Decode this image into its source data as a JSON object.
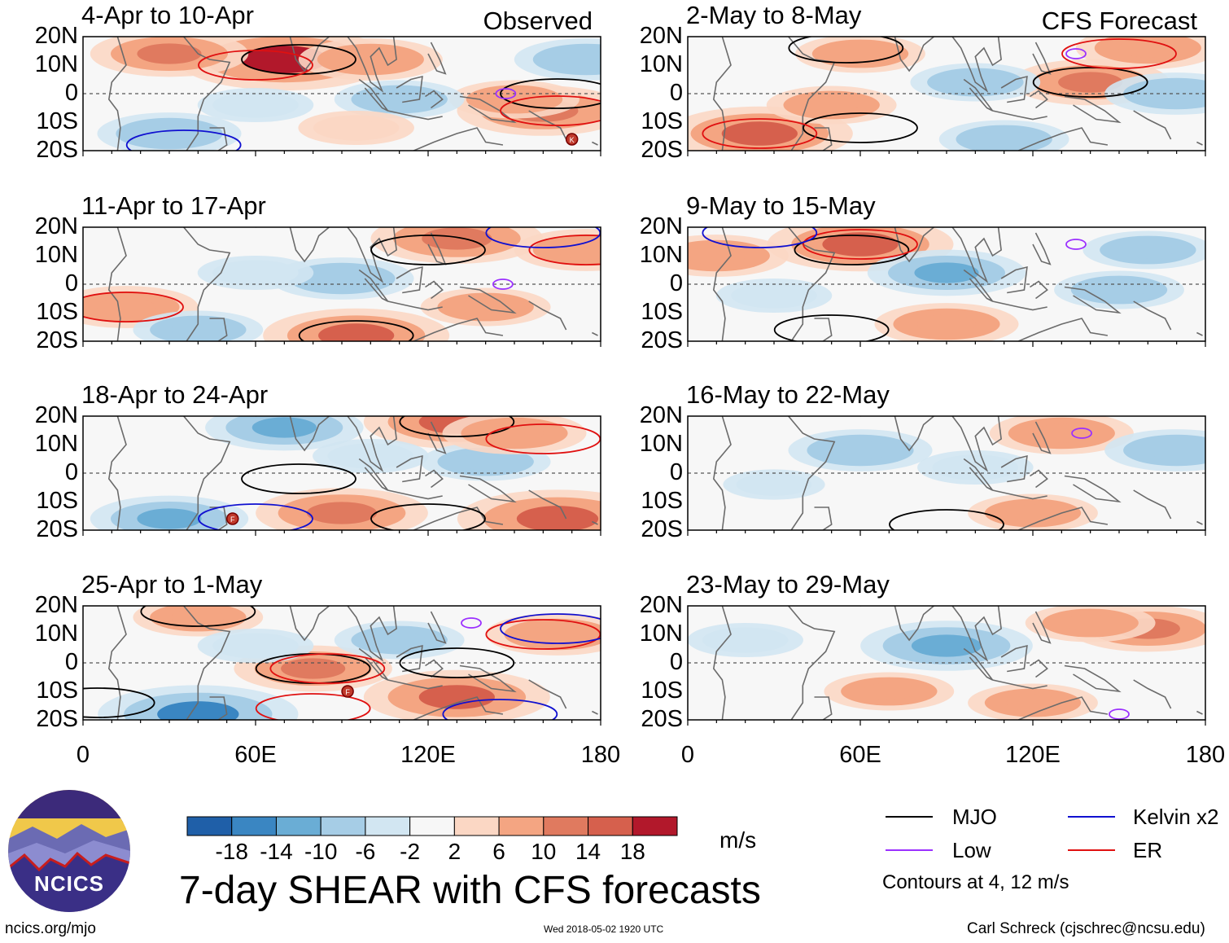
{
  "chart_data": {
    "type": "heatmap",
    "variable": "7-day SHEAR with CFS forecasts",
    "units": "m/s",
    "x_ticks": [
      "0",
      "60E",
      "120E",
      "180"
    ],
    "x_range": [
      0,
      180
    ],
    "y_ticks": [
      "20N",
      "10N",
      "0",
      "10S",
      "20S"
    ],
    "y_range": [
      -20,
      20
    ],
    "color_levels": [
      "-18",
      "-14",
      "-10",
      "-6",
      "-2",
      "2",
      "6",
      "10",
      "14",
      "18"
    ],
    "color_scale": [
      "#08306b",
      "#1f5fa8",
      "#3a86c2",
      "#6aadd5",
      "#a6cde6",
      "#d2e6f2",
      "#f7f7f7",
      "#fbd7c4",
      "#f4a582",
      "#e07a5f",
      "#d6604d",
      "#b2182b",
      "#67001f"
    ],
    "columns": [
      {
        "side_label": "Observed",
        "panels": [
          {
            "title": "4-Apr to 10-Apr",
            "anomalies": [
              {
                "lon": 70,
                "lat": 12,
                "value": 18
              },
              {
                "lon": 30,
                "lat": 14,
                "value": 10
              },
              {
                "lon": 100,
                "lat": 12,
                "value": 8
              },
              {
                "lon": 160,
                "lat": -6,
                "value": 12
              },
              {
                "lon": 150,
                "lat": -2,
                "value": 6
              },
              {
                "lon": 175,
                "lat": 12,
                "value": -8
              },
              {
                "lon": 110,
                "lat": -2,
                "value": -6
              },
              {
                "lon": 30,
                "lat": -14,
                "value": -8
              },
              {
                "lon": 60,
                "lat": -4,
                "value": -4
              },
              {
                "lon": 95,
                "lat": -12,
                "value": 4
              }
            ],
            "contours": [
              {
                "type": "MJO",
                "lon": 75,
                "lat": 12
              },
              {
                "type": "MJO",
                "lon": 165,
                "lat": 0
              },
              {
                "type": "ER",
                "lon": 60,
                "lat": 10
              },
              {
                "type": "ER",
                "lon": 165,
                "lat": -6
              },
              {
                "type": "Low",
                "lon": 147,
                "lat": 0
              },
              {
                "type": "Kelvin x2",
                "lon": 35,
                "lat": -18
              }
            ],
            "storms": [
              {
                "label": "K",
                "lon": 170,
                "lat": -16
              }
            ]
          },
          {
            "title": "11-Apr to 17-Apr",
            "anomalies": [
              {
                "lon": 130,
                "lat": 16,
                "value": 12
              },
              {
                "lon": 95,
                "lat": -18,
                "value": 14
              },
              {
                "lon": 175,
                "lat": 12,
                "value": 8
              },
              {
                "lon": 15,
                "lat": -8,
                "value": 8
              },
              {
                "lon": 90,
                "lat": 2,
                "value": -8
              },
              {
                "lon": 40,
                "lat": -16,
                "value": -6
              },
              {
                "lon": 140,
                "lat": -8,
                "value": 6
              },
              {
                "lon": 60,
                "lat": 4,
                "value": -4
              }
            ],
            "contours": [
              {
                "type": "MJO",
                "lon": 120,
                "lat": 12
              },
              {
                "type": "MJO",
                "lon": 95,
                "lat": -18
              },
              {
                "type": "ER",
                "lon": 15,
                "lat": -8
              },
              {
                "type": "ER",
                "lon": 175,
                "lat": 12
              },
              {
                "type": "Low",
                "lon": 146,
                "lat": 0
              },
              {
                "type": "Kelvin x2",
                "lon": 160,
                "lat": 18
              }
            ],
            "storms": []
          },
          {
            "title": "18-Apr to 24-Apr",
            "anomalies": [
              {
                "lon": 130,
                "lat": 18,
                "value": 14
              },
              {
                "lon": 165,
                "lat": -16,
                "value": 16
              },
              {
                "lon": 90,
                "lat": -14,
                "value": 12
              },
              {
                "lon": 30,
                "lat": -16,
                "value": -10
              },
              {
                "lon": 70,
                "lat": 16,
                "value": -10
              },
              {
                "lon": 140,
                "lat": 4,
                "value": -6
              },
              {
                "lon": 150,
                "lat": 14,
                "value": 8
              },
              {
                "lon": 100,
                "lat": 6,
                "value": -4
              }
            ],
            "contours": [
              {
                "type": "MJO",
                "lon": 130,
                "lat": 18
              },
              {
                "type": "MJO",
                "lon": 120,
                "lat": -16
              },
              {
                "type": "MJO",
                "lon": 75,
                "lat": -2
              },
              {
                "type": "ER",
                "lon": 160,
                "lat": 12
              },
              {
                "type": "Kelvin x2",
                "lon": 60,
                "lat": -16
              }
            ],
            "storms": [
              {
                "label": "F",
                "lon": 52,
                "lat": -16
              }
            ]
          },
          {
            "title": "25-Apr to 1-May",
            "anomalies": [
              {
                "lon": 130,
                "lat": -12,
                "value": 14
              },
              {
                "lon": 80,
                "lat": -2,
                "value": 10
              },
              {
                "lon": 165,
                "lat": 10,
                "value": 8
              },
              {
                "lon": 40,
                "lat": -18,
                "value": -16
              },
              {
                "lon": 40,
                "lat": 16,
                "value": 6
              },
              {
                "lon": 110,
                "lat": 8,
                "value": -6
              },
              {
                "lon": 60,
                "lat": 6,
                "value": -4
              }
            ],
            "contours": [
              {
                "type": "MJO",
                "lon": 40,
                "lat": 18
              },
              {
                "type": "MJO",
                "lon": 80,
                "lat": -2
              },
              {
                "type": "MJO",
                "lon": 130,
                "lat": 0
              },
              {
                "type": "MJO",
                "lon": 5,
                "lat": -14
              },
              {
                "type": "ER",
                "lon": 160,
                "lat": 10
              },
              {
                "type": "ER",
                "lon": 80,
                "lat": -16
              },
              {
                "type": "ER",
                "lon": 85,
                "lat": -2
              },
              {
                "type": "Kelvin x2",
                "lon": 145,
                "lat": -18
              },
              {
                "type": "Kelvin x2",
                "lon": 165,
                "lat": 12
              },
              {
                "type": "Low",
                "lon": 135,
                "lat": 14
              }
            ],
            "storms": [
              {
                "label": "F",
                "lon": 92,
                "lat": -10
              }
            ]
          }
        ]
      },
      {
        "side_label": "CFS Forecast",
        "panels": [
          {
            "title": "2-May to 8-May",
            "anomalies": [
              {
                "lon": 25,
                "lat": -14,
                "value": 14
              },
              {
                "lon": 140,
                "lat": 4,
                "value": 10
              },
              {
                "lon": 160,
                "lat": 16,
                "value": 8
              },
              {
                "lon": 60,
                "lat": 14,
                "value": 6
              },
              {
                "lon": 100,
                "lat": 4,
                "value": -6
              },
              {
                "lon": 170,
                "lat": 0,
                "value": -8
              },
              {
                "lon": 110,
                "lat": -16,
                "value": -6
              },
              {
                "lon": 50,
                "lat": -4,
                "value": 6
              }
            ],
            "contours": [
              {
                "type": "MJO",
                "lon": 60,
                "lat": -12
              },
              {
                "type": "MJO",
                "lon": 140,
                "lat": 4
              },
              {
                "type": "MJO",
                "lon": 55,
                "lat": 16
              },
              {
                "type": "ER",
                "lon": 25,
                "lat": -14
              },
              {
                "type": "ER",
                "lon": 150,
                "lat": 14
              },
              {
                "type": "Low",
                "lon": 135,
                "lat": 14
              }
            ],
            "storms": []
          },
          {
            "title": "9-May to 15-May",
            "anomalies": [
              {
                "lon": 60,
                "lat": 14,
                "value": 14
              },
              {
                "lon": 90,
                "lat": -14,
                "value": 8
              },
              {
                "lon": 10,
                "lat": 10,
                "value": 8
              },
              {
                "lon": 90,
                "lat": 4,
                "value": -10
              },
              {
                "lon": 160,
                "lat": 12,
                "value": -6
              },
              {
                "lon": 150,
                "lat": -2,
                "value": -6
              },
              {
                "lon": 30,
                "lat": -4,
                "value": -4
              }
            ],
            "contours": [
              {
                "type": "MJO",
                "lon": 50,
                "lat": -16
              },
              {
                "type": "MJO",
                "lon": 57,
                "lat": 12
              },
              {
                "type": "ER",
                "lon": 60,
                "lat": 14
              },
              {
                "type": "Kelvin x2",
                "lon": 25,
                "lat": 18
              },
              {
                "type": "Low",
                "lon": 135,
                "lat": 14
              }
            ],
            "storms": []
          },
          {
            "title": "16-May to 22-May",
            "anomalies": [
              {
                "lon": 130,
                "lat": 14,
                "value": 8
              },
              {
                "lon": 120,
                "lat": -14,
                "value": 6
              },
              {
                "lon": 60,
                "lat": 8,
                "value": -8
              },
              {
                "lon": 170,
                "lat": 8,
                "value": -8
              },
              {
                "lon": 100,
                "lat": 2,
                "value": -4
              },
              {
                "lon": 30,
                "lat": -4,
                "value": -2
              }
            ],
            "contours": [
              {
                "type": "MJO",
                "lon": 90,
                "lat": -18
              },
              {
                "type": "Low",
                "lon": 137,
                "lat": 14
              }
            ],
            "storms": []
          },
          {
            "title": "23-May to 29-May",
            "anomalies": [
              {
                "lon": 160,
                "lat": 12,
                "value": 10
              },
              {
                "lon": 90,
                "lat": 6,
                "value": -12
              },
              {
                "lon": 70,
                "lat": -10,
                "value": 6
              },
              {
                "lon": 120,
                "lat": -14,
                "value": 6
              },
              {
                "lon": 140,
                "lat": 14,
                "value": 6
              },
              {
                "lon": 20,
                "lat": 8,
                "value": -4
              }
            ],
            "contours": [
              {
                "type": "Low",
                "lon": 150,
                "lat": -18
              }
            ],
            "storms": []
          }
        ]
      }
    ],
    "legend": [
      {
        "label": "MJO",
        "color": "#000000"
      },
      {
        "label": "Kelvin x2",
        "color": "#1010d0"
      },
      {
        "label": "Low",
        "color": "#9b30ff"
      },
      {
        "label": "ER",
        "color": "#e01010"
      }
    ],
    "contours_note": "Contours at 4, 12 m/s"
  },
  "title": "7-day SHEAR with CFS forecasts",
  "units_label": "m/s",
  "logo": {
    "text": "NCICS"
  },
  "footer": {
    "left": "ncics.org/mjo",
    "center": "Wed 2018-05-02 1920 UTC",
    "right": "Carl Schreck (cjschrec@ncsu.edu)"
  }
}
